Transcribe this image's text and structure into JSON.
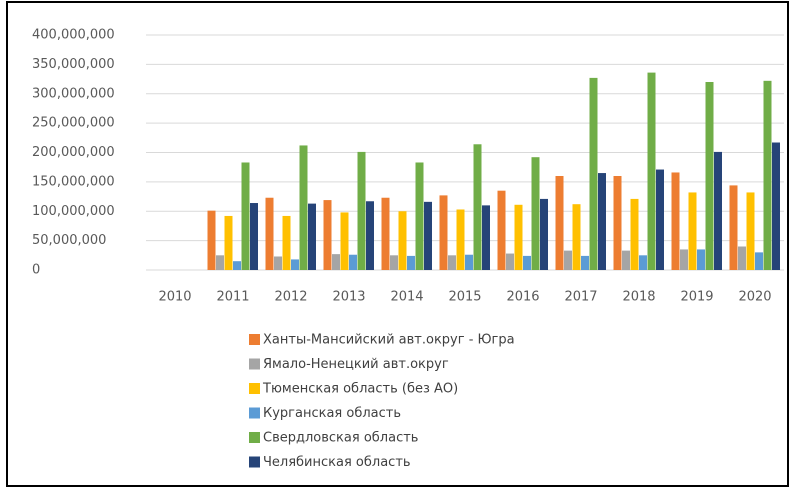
{
  "chart_data": {
    "type": "bar",
    "categories": [
      "2010",
      "2011",
      "2012",
      "2013",
      "2014",
      "2015",
      "2016",
      "2017",
      "2018",
      "2019",
      "2020"
    ],
    "series": [
      {
        "name": "Ханты-Мансийский авт.округ - Югра",
        "color": "#ed7d31",
        "values": [
          null,
          101000000,
          123000000,
          119000000,
          123000000,
          127000000,
          135000000,
          160000000,
          160000000,
          166000000,
          144000000
        ]
      },
      {
        "name": "Ямало-Ненецкий авт.округ",
        "color": "#a5a5a5",
        "values": [
          null,
          25000000,
          23000000,
          27000000,
          25000000,
          25000000,
          28000000,
          33000000,
          33000000,
          35000000,
          40000000
        ]
      },
      {
        "name": "Тюменская область (без АО)",
        "color": "#ffc000",
        "values": [
          null,
          92000000,
          92000000,
          98000000,
          100000000,
          103000000,
          111000000,
          112000000,
          121000000,
          132000000,
          132000000
        ]
      },
      {
        "name": "Курганская область",
        "color": "#5b9bd5",
        "values": [
          null,
          15000000,
          18000000,
          26000000,
          24000000,
          26000000,
          24000000,
          24000000,
          25000000,
          35000000,
          30000000
        ]
      },
      {
        "name": "Свердловская область",
        "color": "#70ad47",
        "values": [
          null,
          183000000,
          212000000,
          201000000,
          183000000,
          214000000,
          192000000,
          327000000,
          336000000,
          320000000,
          322000000
        ]
      },
      {
        "name": "Челябинская область",
        "color": "#264478",
        "values": [
          null,
          114000000,
          113000000,
          117000000,
          116000000,
          110000000,
          121000000,
          165000000,
          171000000,
          201000000,
          217000000
        ]
      }
    ],
    "ylim": [
      0,
      400000000
    ],
    "yticks": [
      0,
      {
        "value": 50000000,
        "label": "50,000,000"
      },
      {
        "value": 100000000,
        "label": "100,000,000"
      },
      {
        "value": 150000000,
        "label": "150,000,000"
      },
      {
        "value": 200000000,
        "label": "200,000,000"
      },
      {
        "value": 250000000,
        "label": "250,000,000"
      },
      {
        "value": 300000000,
        "label": "300,000,000"
      },
      {
        "value": 350000000,
        "label": "350,000,000"
      },
      {
        "value": 400000000,
        "label": "400,000,000"
      }
    ],
    "grid": true,
    "legend": "bottom"
  }
}
